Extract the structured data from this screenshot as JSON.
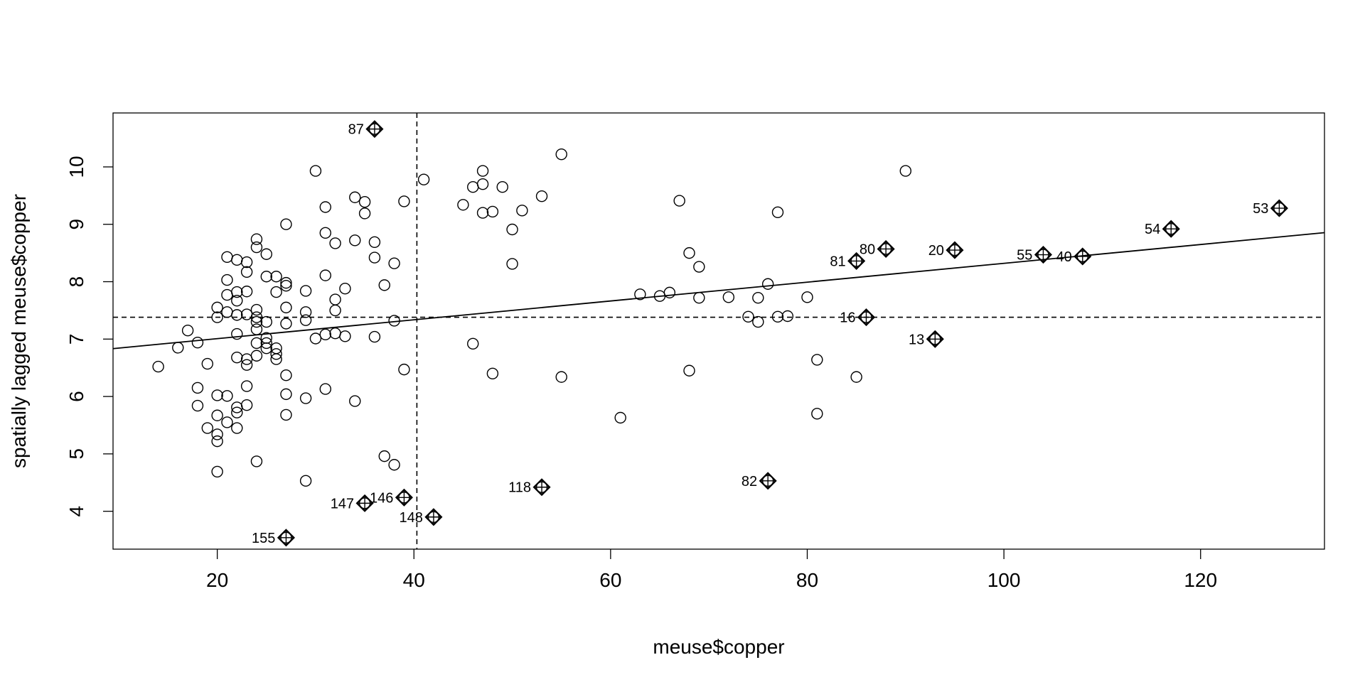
{
  "chart_data": {
    "type": "scatter",
    "title": "",
    "xlabel": "meuse$copper",
    "ylabel": "spatially lagged meuse$copper",
    "xlim": [
      9.4,
      132.6
    ],
    "ylim": [
      3.34,
      10.94
    ],
    "x_ticks": [
      20,
      40,
      60,
      80,
      100,
      120
    ],
    "y_ticks": [
      4,
      5,
      6,
      7,
      8,
      9,
      10
    ],
    "grid": false,
    "mean_x": 40.3,
    "mean_y": 7.38,
    "regression_line": {
      "intercept": 6.68,
      "slope": 0.0164
    },
    "points": [
      [
        14,
        6.52
      ],
      [
        16,
        6.85
      ],
      [
        17,
        7.15
      ],
      [
        18,
        6.94
      ],
      [
        18,
        6.15
      ],
      [
        18,
        5.84
      ],
      [
        19,
        6.57
      ],
      [
        19,
        5.45
      ],
      [
        20,
        7.55
      ],
      [
        20,
        7.38
      ],
      [
        20,
        6.02
      ],
      [
        20,
        5.67
      ],
      [
        20,
        5.34
      ],
      [
        20,
        5.22
      ],
      [
        20,
        4.69
      ],
      [
        21,
        8.43
      ],
      [
        21,
        8.03
      ],
      [
        21,
        7.77
      ],
      [
        21,
        7.47
      ],
      [
        21,
        6.01
      ],
      [
        21,
        5.55
      ],
      [
        22,
        8.38
      ],
      [
        22,
        7.82
      ],
      [
        22,
        7.67
      ],
      [
        22,
        7.42
      ],
      [
        22,
        7.09
      ],
      [
        22,
        6.68
      ],
      [
        22,
        5.81
      ],
      [
        22,
        5.72
      ],
      [
        22,
        5.45
      ],
      [
        23,
        8.34
      ],
      [
        23,
        8.17
      ],
      [
        23,
        7.83
      ],
      [
        23,
        7.43
      ],
      [
        23,
        6.65
      ],
      [
        23,
        6.55
      ],
      [
        23,
        6.18
      ],
      [
        23,
        5.85
      ],
      [
        24,
        8.74
      ],
      [
        24,
        8.6
      ],
      [
        24,
        7.51
      ],
      [
        24,
        7.38
      ],
      [
        24,
        7.3
      ],
      [
        24,
        7.17
      ],
      [
        24,
        6.93
      ],
      [
        24,
        6.71
      ],
      [
        24,
        4.87
      ],
      [
        25,
        8.48
      ],
      [
        25,
        8.09
      ],
      [
        25,
        7.3
      ],
      [
        25,
        7.02
      ],
      [
        25,
        6.93
      ],
      [
        25,
        6.84
      ],
      [
        26,
        8.09
      ],
      [
        26,
        7.82
      ],
      [
        26,
        6.84
      ],
      [
        26,
        6.74
      ],
      [
        26,
        6.65
      ],
      [
        27,
        9.0
      ],
      [
        27,
        7.98
      ],
      [
        27,
        7.93
      ],
      [
        27,
        7.55
      ],
      [
        27,
        7.27
      ],
      [
        27,
        6.37
      ],
      [
        27,
        6.04
      ],
      [
        27,
        5.68
      ],
      [
        29,
        7.84
      ],
      [
        29,
        7.47
      ],
      [
        29,
        7.33
      ],
      [
        29,
        5.97
      ],
      [
        29,
        4.53
      ],
      [
        30,
        9.93
      ],
      [
        30,
        7.01
      ],
      [
        31,
        9.3
      ],
      [
        31,
        8.85
      ],
      [
        31,
        8.11
      ],
      [
        31,
        7.08
      ],
      [
        31,
        6.13
      ],
      [
        32,
        8.67
      ],
      [
        32,
        7.69
      ],
      [
        32,
        7.5
      ],
      [
        32,
        7.1
      ],
      [
        33,
        7.88
      ],
      [
        33,
        7.05
      ],
      [
        34,
        9.47
      ],
      [
        34,
        8.72
      ],
      [
        34,
        5.92
      ],
      [
        35,
        9.39
      ],
      [
        35,
        9.19
      ],
      [
        36,
        8.69
      ],
      [
        36,
        8.42
      ],
      [
        36,
        7.04
      ],
      [
        37,
        7.94
      ],
      [
        37,
        4.96
      ],
      [
        38,
        8.32
      ],
      [
        38,
        7.32
      ],
      [
        38,
        4.81
      ],
      [
        39,
        9.4
      ],
      [
        39,
        6.47
      ],
      [
        41,
        9.78
      ],
      [
        45,
        9.34
      ],
      [
        46,
        9.65
      ],
      [
        46,
        6.92
      ],
      [
        47,
        9.93
      ],
      [
        47,
        9.7
      ],
      [
        47,
        9.2
      ],
      [
        48,
        9.22
      ],
      [
        48,
        6.4
      ],
      [
        49,
        9.65
      ],
      [
        50,
        8.91
      ],
      [
        50,
        8.31
      ],
      [
        51,
        9.24
      ],
      [
        53,
        9.49
      ],
      [
        55,
        10.22
      ],
      [
        55,
        6.34
      ],
      [
        61,
        5.63
      ],
      [
        63,
        7.78
      ],
      [
        65,
        7.75
      ],
      [
        66,
        7.81
      ],
      [
        67,
        9.41
      ],
      [
        68,
        8.5
      ],
      [
        68,
        6.45
      ],
      [
        69,
        8.26
      ],
      [
        69,
        7.72
      ],
      [
        72,
        7.73
      ],
      [
        74,
        7.39
      ],
      [
        75,
        7.72
      ],
      [
        75,
        7.3
      ],
      [
        76,
        7.96
      ],
      [
        77,
        9.21
      ],
      [
        77,
        7.39
      ],
      [
        78,
        7.4
      ],
      [
        80,
        7.73
      ],
      [
        81,
        6.64
      ],
      [
        81,
        5.7
      ],
      [
        85,
        6.34
      ],
      [
        90,
        9.93
      ]
    ],
    "influential_points": [
      {
        "label": "87",
        "x": 36,
        "y": 10.66
      },
      {
        "label": "53",
        "x": 128,
        "y": 9.28
      },
      {
        "label": "54",
        "x": 117,
        "y": 8.92
      },
      {
        "label": "80",
        "x": 88,
        "y": 8.57
      },
      {
        "label": "20",
        "x": 95,
        "y": 8.55
      },
      {
        "label": "81",
        "x": 85,
        "y": 8.36
      },
      {
        "label": "55",
        "x": 104,
        "y": 8.47
      },
      {
        "label": "40",
        "x": 108,
        "y": 8.44
      },
      {
        "label": "16",
        "x": 86,
        "y": 7.38
      },
      {
        "label": "13",
        "x": 93,
        "y": 7.0
      },
      {
        "label": "118",
        "x": 53,
        "y": 4.42
      },
      {
        "label": "82",
        "x": 76,
        "y": 4.53
      },
      {
        "label": "147",
        "x": 35,
        "y": 4.14
      },
      {
        "label": "146",
        "x": 39,
        "y": 4.24
      },
      {
        "label": "148",
        "x": 42,
        "y": 3.9
      },
      {
        "label": "155",
        "x": 27,
        "y": 3.54
      }
    ]
  }
}
